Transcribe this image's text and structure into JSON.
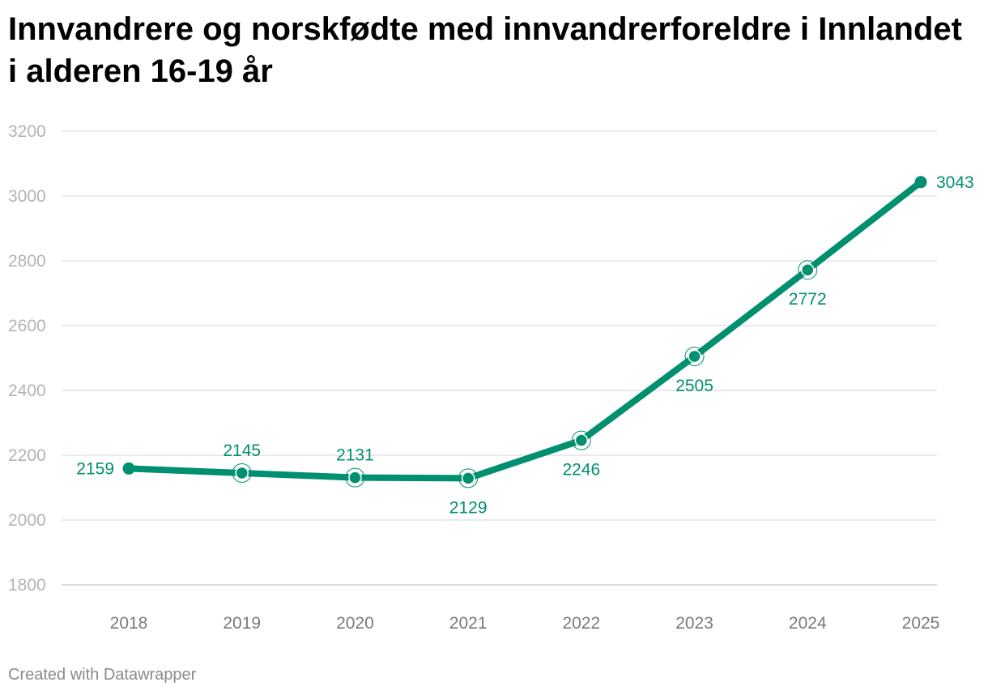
{
  "title": "Innvandrere og norskfødte med innvandrerforeldre i Innlandet i alderen 16-19 år",
  "credit": "Created with Datawrapper",
  "colors": {
    "line": "#008f6f",
    "grid": "#e3e3e3",
    "axis_text": "#b3b3b3",
    "x_text": "#7a7a7a"
  },
  "chart_data": {
    "type": "line",
    "title": "Innvandrere og norskfødte med innvandrerforeldre i Innlandet i alderen 16-19 år",
    "xlabel": "",
    "ylabel": "",
    "categories": [
      "2018",
      "2019",
      "2020",
      "2021",
      "2022",
      "2023",
      "2024",
      "2025"
    ],
    "values": [
      2159,
      2145,
      2131,
      2129,
      2246,
      2505,
      2772,
      3043
    ],
    "value_labels": [
      "2159",
      "2145",
      "2131",
      "2129",
      "2246",
      "2505",
      "2772",
      "3043"
    ],
    "label_positions": [
      "left",
      "above",
      "above",
      "below",
      "below",
      "below",
      "below",
      "right"
    ],
    "ylim": [
      1800,
      3200
    ],
    "yticks": [
      1800,
      2000,
      2200,
      2400,
      2600,
      2800,
      3000,
      3200
    ],
    "grid": true,
    "legend": "none"
  }
}
